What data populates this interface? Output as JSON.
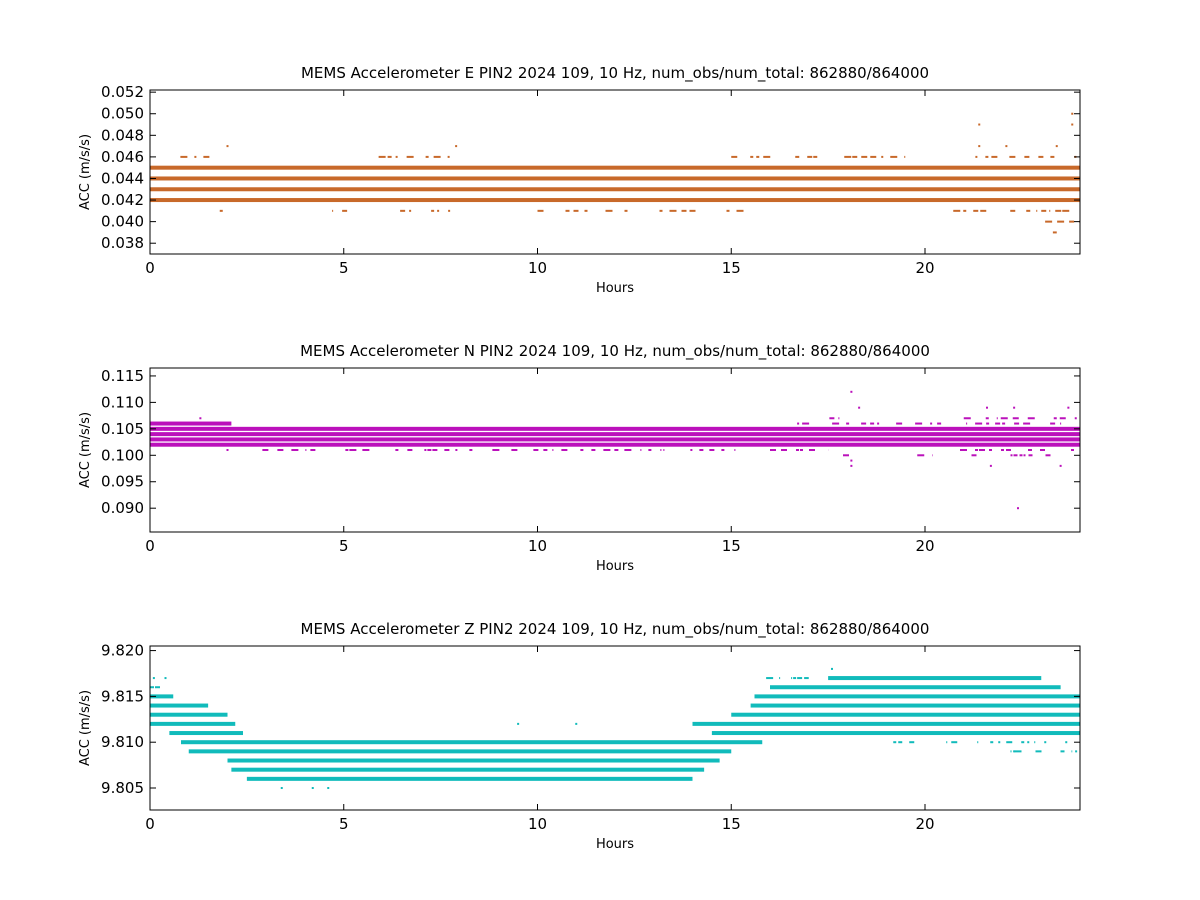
{
  "chart_data": [
    {
      "type": "scatter",
      "title": "MEMS Accelerometer E PIN2 2024 109, 10 Hz, num_obs/num_total: 862880/864000",
      "xlabel": "Hours",
      "ylabel": "ACC (m/s/s)",
      "xlim": [
        0,
        24
      ],
      "ylim": [
        0.037,
        0.0522
      ],
      "xticks": [
        0,
        5,
        10,
        15,
        20
      ],
      "yticks": [
        0.038,
        0.04,
        0.042,
        0.044,
        0.046,
        0.048,
        0.05,
        0.052
      ],
      "ytick_labels": [
        "0.038",
        "0.040",
        "0.042",
        "0.044",
        "0.046",
        "0.048",
        "0.050",
        "0.052"
      ],
      "xtick_labels": [
        "0",
        "5",
        "10",
        "15",
        "20"
      ],
      "color": "#c8692a",
      "grid": false,
      "dense_levels": [
        {
          "y": 0.045,
          "x_start": 0,
          "x_end": 24
        },
        {
          "y": 0.044,
          "x_start": 0,
          "x_end": 24
        },
        {
          "y": 0.043,
          "x_start": 0,
          "x_end": 24
        },
        {
          "y": 0.042,
          "x_start": 0,
          "x_end": 24
        }
      ],
      "sparse_levels": [
        {
          "y": 0.046,
          "x_ranges": [
            [
              0.5,
              2.1
            ],
            [
              5.9,
              8.1
            ],
            [
              15.0,
              19.5
            ],
            [
              21.3,
              24
            ]
          ]
        },
        {
          "y": 0.041,
          "x_ranges": [
            [
              1.8,
              2.0
            ],
            [
              4.7,
              8.0
            ],
            [
              10.0,
              15.5
            ],
            [
              20.6,
              24
            ]
          ]
        },
        {
          "y": 0.04,
          "x_ranges": [
            [
              23.1,
              24
            ]
          ]
        },
        {
          "y": 0.039,
          "x_ranges": [
            [
              21.0,
              21.1
            ],
            [
              23.3,
              23.4
            ],
            [
              23.9,
              24
            ]
          ]
        }
      ],
      "outliers": [
        {
          "x": 2.0,
          "y": 0.047
        },
        {
          "x": 7.9,
          "y": 0.047
        },
        {
          "x": 21.4,
          "y": 0.049
        },
        {
          "x": 21.4,
          "y": 0.047
        },
        {
          "x": 23.8,
          "y": 0.05
        },
        {
          "x": 23.8,
          "y": 0.049
        },
        {
          "x": 22.1,
          "y": 0.047
        },
        {
          "x": 23.4,
          "y": 0.047
        }
      ]
    },
    {
      "type": "scatter",
      "title": "MEMS Accelerometer N PIN2 2024 109, 10 Hz, num_obs/num_total: 862880/864000",
      "xlabel": "Hours",
      "ylabel": "ACC (m/s/s)",
      "xlim": [
        0,
        24
      ],
      "ylim": [
        0.0855,
        0.1165
      ],
      "xticks": [
        0,
        5,
        10,
        15,
        20
      ],
      "yticks": [
        0.09,
        0.095,
        0.1,
        0.105,
        0.11,
        0.115
      ],
      "ytick_labels": [
        "0.090",
        "0.095",
        "0.100",
        "0.105",
        "0.110",
        "0.115"
      ],
      "xtick_labels": [
        "0",
        "5",
        "10",
        "15",
        "20"
      ],
      "color": "#bb11bb",
      "grid": false,
      "dense_levels": [
        {
          "y": 0.106,
          "x_start": 0,
          "x_end": 2.1
        },
        {
          "y": 0.105,
          "x_start": 0,
          "x_end": 24
        },
        {
          "y": 0.104,
          "x_start": 0,
          "x_end": 24
        },
        {
          "y": 0.103,
          "x_start": 0,
          "x_end": 24
        },
        {
          "y": 0.102,
          "x_start": 0,
          "x_end": 24
        }
      ],
      "sparse_levels": [
        {
          "y": 0.101,
          "x_ranges": [
            [
              2.9,
              15.2
            ],
            [
              16.0,
              17.5
            ],
            [
              20.8,
              24
            ]
          ]
        },
        {
          "y": 0.106,
          "x_ranges": [
            [
              16.7,
              24
            ]
          ]
        },
        {
          "y": 0.107,
          "x_ranges": [
            [
              17.3,
              18.5
            ],
            [
              21.0,
              24
            ]
          ]
        },
        {
          "y": 0.1,
          "x_ranges": [
            [
              17.6,
              18.1
            ],
            [
              19.8,
              20.2
            ],
            [
              21.2,
              23.8
            ]
          ]
        }
      ],
      "outliers": [
        {
          "x": 18.1,
          "y": 0.112
        },
        {
          "x": 18.3,
          "y": 0.109
        },
        {
          "x": 18.1,
          "y": 0.099
        },
        {
          "x": 18.1,
          "y": 0.098
        },
        {
          "x": 21.6,
          "y": 0.109
        },
        {
          "x": 22.3,
          "y": 0.109
        },
        {
          "x": 22.4,
          "y": 0.09
        },
        {
          "x": 21.7,
          "y": 0.098
        },
        {
          "x": 23.5,
          "y": 0.098
        },
        {
          "x": 23.7,
          "y": 0.109
        },
        {
          "x": 1.3,
          "y": 0.107
        },
        {
          "x": 2.0,
          "y": 0.101
        }
      ]
    },
    {
      "type": "scatter",
      "title": "MEMS Accelerometer Z PIN2 2024 109, 10 Hz, num_obs/num_total: 862880/864000",
      "xlabel": "Hours",
      "ylabel": "ACC (m/s/s)",
      "xlim": [
        0,
        24
      ],
      "ylim": [
        9.8026,
        9.8205
      ],
      "xticks": [
        0,
        5,
        10,
        15,
        20
      ],
      "yticks": [
        9.805,
        9.81,
        9.815,
        9.82
      ],
      "ytick_labels": [
        "9.805",
        "9.810",
        "9.815",
        "9.820"
      ],
      "xtick_labels": [
        "0",
        "5",
        "10",
        "15",
        "20"
      ],
      "color": "#11bbbb",
      "grid": false,
      "dense_levels": [
        {
          "y": 9.815,
          "x_start": 0,
          "x_end": 0.6
        },
        {
          "y": 9.814,
          "x_start": 0,
          "x_end": 1.5
        },
        {
          "y": 9.813,
          "x_start": 0,
          "x_end": 2.0
        },
        {
          "y": 9.812,
          "x_start": 0,
          "x_end": 2.2
        },
        {
          "y": 9.811,
          "x_start": 0.5,
          "x_end": 2.4
        },
        {
          "y": 9.81,
          "x_start": 0.8,
          "x_end": 15.8
        },
        {
          "y": 9.809,
          "x_start": 1.0,
          "x_end": 15.0
        },
        {
          "y": 9.808,
          "x_start": 2.0,
          "x_end": 14.7
        },
        {
          "y": 9.807,
          "x_start": 2.1,
          "x_end": 14.3
        },
        {
          "y": 9.806,
          "x_start": 2.5,
          "x_end": 14.0
        },
        {
          "y": 9.811,
          "x_start": 14.5,
          "x_end": 24
        },
        {
          "y": 9.812,
          "x_start": 14.0,
          "x_end": 24
        },
        {
          "y": 9.813,
          "x_start": 15.0,
          "x_end": 24
        },
        {
          "y": 9.814,
          "x_start": 15.5,
          "x_end": 24
        },
        {
          "y": 9.815,
          "x_start": 15.6,
          "x_end": 24
        },
        {
          "y": 9.816,
          "x_start": 16.0,
          "x_end": 23.5
        },
        {
          "y": 9.817,
          "x_start": 17.5,
          "x_end": 23.0
        }
      ],
      "sparse_levels": [
        {
          "y": 9.817,
          "x_ranges": [
            [
              15.9,
              17.0
            ]
          ]
        },
        {
          "y": 9.816,
          "x_ranges": [
            [
              0,
              0.3
            ]
          ]
        },
        {
          "y": 9.81,
          "x_ranges": [
            [
              19.0,
              24
            ]
          ]
        },
        {
          "y": 9.809,
          "x_ranges": [
            [
              22.0,
              23.8
            ]
          ]
        }
      ],
      "outliers": [
        {
          "x": 17.6,
          "y": 9.818
        },
        {
          "x": 3.4,
          "y": 9.805
        },
        {
          "x": 4.2,
          "y": 9.805
        },
        {
          "x": 4.6,
          "y": 9.805
        },
        {
          "x": 0.1,
          "y": 9.817
        },
        {
          "x": 0.4,
          "y": 9.817
        },
        {
          "x": 11.0,
          "y": 9.812
        },
        {
          "x": 9.5,
          "y": 9.812
        },
        {
          "x": 23.9,
          "y": 9.809
        },
        {
          "x": 22.3,
          "y": 9.809
        }
      ]
    }
  ]
}
